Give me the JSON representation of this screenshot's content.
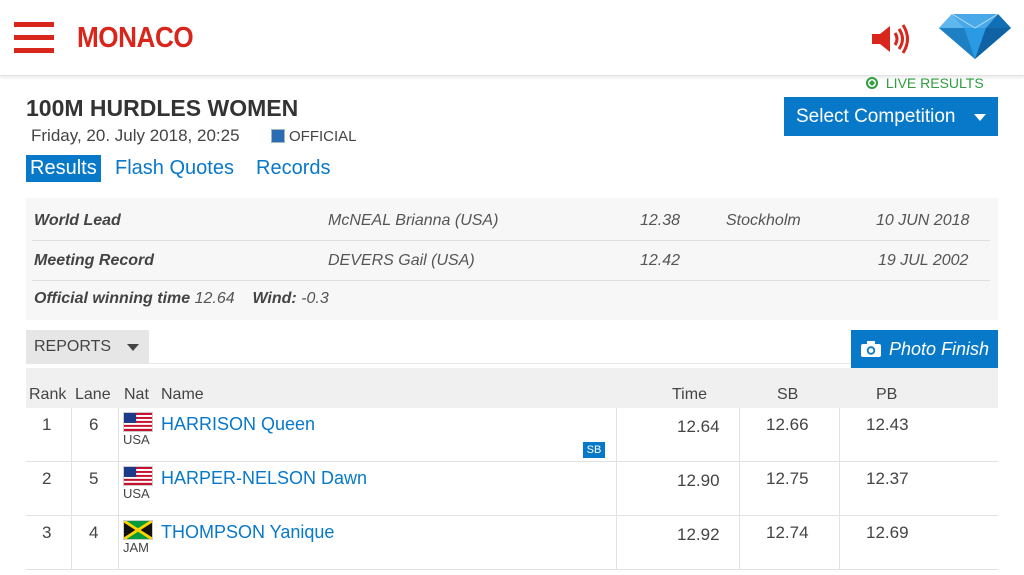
{
  "header": {
    "brand": "MONACO",
    "menu_icon": "hamburger-menu-icon",
    "sound_icon": "speaker-icon",
    "logo_icon": "diamond-league-logo-icon",
    "accent_color": "#d9261c"
  },
  "live_results": "LIVE RESULTS",
  "event": {
    "title": "100M HURDLES WOMEN",
    "datetime": "Friday, 20. July 2018, 20:25",
    "status": "OFFICIAL"
  },
  "select_competition": "Select Competition",
  "tabs": [
    "Results",
    "Flash Quotes",
    "Records"
  ],
  "records": [
    {
      "label": "World Lead",
      "athlete": "McNEAL Brianna (USA)",
      "mark": "12.38",
      "venue": "Stockholm",
      "date": "10 JUN 2018"
    },
    {
      "label": "Meeting Record",
      "athlete": "DEVERS Gail (USA)",
      "mark": "12.42",
      "venue": "",
      "date": "19 JUL 2002"
    }
  ],
  "winning": {
    "label": "Official winning time",
    "time": "12.64",
    "wind_label": "Wind:",
    "wind": "-0.3"
  },
  "reports_label": "REPORTS",
  "photo_finish": "Photo Finish",
  "table": {
    "headers": {
      "rank": "Rank",
      "lane": "Lane",
      "nat": "Nat",
      "name": "Name",
      "time": "Time",
      "sb": "SB",
      "pb": "PB"
    },
    "rows": [
      {
        "rank": "1",
        "lane": "6",
        "nat": "USA",
        "name": "HARRISON Queen",
        "time": "12.64",
        "sb": "12.66",
        "pb": "12.43",
        "badge": "SB"
      },
      {
        "rank": "2",
        "lane": "5",
        "nat": "USA",
        "name": "HARPER-NELSON Dawn",
        "time": "12.90",
        "sb": "12.75",
        "pb": "12.37",
        "badge": ""
      },
      {
        "rank": "3",
        "lane": "4",
        "nat": "JAM",
        "name": "THOMPSON Yanique",
        "time": "12.92",
        "sb": "12.74",
        "pb": "12.69",
        "badge": ""
      }
    ]
  }
}
